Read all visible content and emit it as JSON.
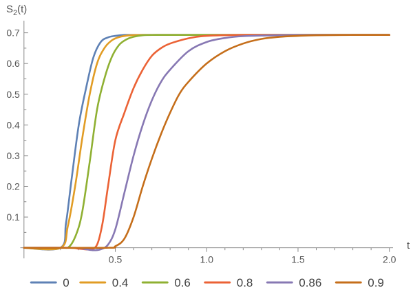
{
  "chart_data": {
    "type": "line",
    "title": "",
    "xlabel": "t",
    "ylabel_main": "S",
    "ylabel_sub": "2",
    "ylabel_arg": "(t)",
    "xlim": [
      -0.02,
      2.02
    ],
    "ylim": [
      -0.012,
      0.735
    ],
    "x_ticks": [
      0.5,
      1.0,
      1.5,
      2.0
    ],
    "x_tick_labels": [
      "0.5",
      "1.0",
      "1.5",
      "2.0"
    ],
    "y_ticks": [
      0.1,
      0.2,
      0.3,
      0.4,
      0.5,
      0.6,
      0.7
    ],
    "y_tick_labels": [
      "0.1",
      "0.2",
      "0.3",
      "0.4",
      "0.5",
      "0.6",
      "0.7"
    ],
    "grid": false,
    "legend_position": "bottom",
    "series": [
      {
        "name": "0",
        "color": "#5E81B5",
        "x": [
          0.0,
          0.2,
          0.23,
          0.26,
          0.3,
          0.34,
          0.38,
          0.42,
          0.46,
          0.5,
          0.55,
          0.6,
          0.7,
          1.0,
          1.5,
          2.0
        ],
        "y": [
          0.0,
          0.0,
          0.08,
          0.22,
          0.4,
          0.52,
          0.62,
          0.67,
          0.685,
          0.69,
          0.693,
          0.693,
          0.693,
          0.693,
          0.693,
          0.693
        ]
      },
      {
        "name": "0.4",
        "color": "#E19C24",
        "x": [
          0.0,
          0.2,
          0.24,
          0.28,
          0.32,
          0.36,
          0.4,
          0.44,
          0.48,
          0.52,
          0.58,
          0.65,
          0.75,
          1.0,
          1.5,
          2.0
        ],
        "y": [
          0.0,
          0.0,
          0.07,
          0.2,
          0.36,
          0.5,
          0.6,
          0.65,
          0.675,
          0.686,
          0.692,
          0.693,
          0.693,
          0.693,
          0.693,
          0.693
        ]
      },
      {
        "name": "0.6",
        "color": "#8FB032",
        "x": [
          0.0,
          0.2,
          0.25,
          0.29,
          0.32,
          0.36,
          0.4,
          0.44,
          0.48,
          0.52,
          0.56,
          0.6,
          0.65,
          0.72,
          0.8,
          1.0,
          1.5,
          2.0
        ],
        "y": [
          0.0,
          0.0,
          0.005,
          0.05,
          0.12,
          0.28,
          0.45,
          0.55,
          0.62,
          0.66,
          0.678,
          0.687,
          0.692,
          0.693,
          0.693,
          0.693,
          0.693,
          0.693
        ]
      },
      {
        "name": "0.8",
        "color": "#EB6235",
        "x": [
          0.0,
          0.25,
          0.3,
          0.36,
          0.4,
          0.43,
          0.46,
          0.5,
          0.55,
          0.6,
          0.65,
          0.7,
          0.75,
          0.8,
          0.9,
          1.0,
          1.2,
          1.5,
          2.0
        ],
        "y": [
          0.0,
          0.0,
          -0.003,
          -0.005,
          0.01,
          0.08,
          0.2,
          0.35,
          0.44,
          0.52,
          0.58,
          0.625,
          0.65,
          0.665,
          0.682,
          0.69,
          0.693,
          0.693,
          0.693
        ]
      },
      {
        "name": "0.86",
        "color": "#8778B3",
        "x": [
          0.0,
          0.28,
          0.34,
          0.38,
          0.42,
          0.46,
          0.5,
          0.55,
          0.6,
          0.65,
          0.7,
          0.75,
          0.8,
          0.9,
          1.0,
          1.1,
          1.2,
          1.4,
          1.6,
          2.0
        ],
        "y": [
          0.0,
          0.0,
          -0.005,
          -0.008,
          -0.005,
          0.01,
          0.06,
          0.18,
          0.3,
          0.4,
          0.48,
          0.54,
          0.58,
          0.64,
          0.67,
          0.683,
          0.689,
          0.692,
          0.693,
          0.693
        ]
      },
      {
        "name": "0.9",
        "color": "#C56E1A",
        "x": [
          0.0,
          0.45,
          0.5,
          0.55,
          0.6,
          0.65,
          0.7,
          0.75,
          0.8,
          0.85,
          0.9,
          1.0,
          1.1,
          1.2,
          1.3,
          1.4,
          1.5,
          1.6,
          1.8,
          2.0
        ],
        "y": [
          0.0,
          0.0,
          0.005,
          0.03,
          0.1,
          0.2,
          0.29,
          0.37,
          0.44,
          0.5,
          0.54,
          0.6,
          0.64,
          0.665,
          0.68,
          0.687,
          0.69,
          0.692,
          0.693,
          0.693
        ]
      }
    ]
  }
}
